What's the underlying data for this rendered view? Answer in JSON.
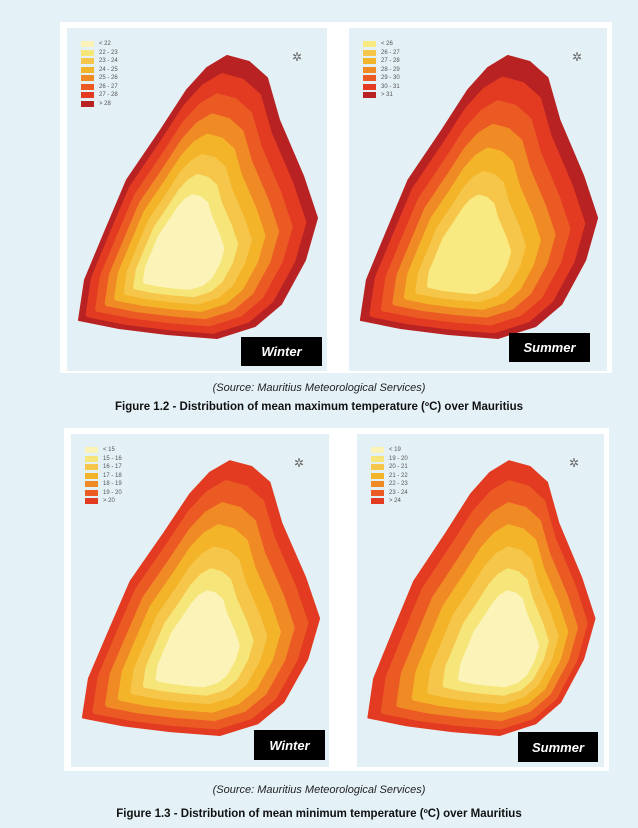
{
  "figures": [
    {
      "source": "(Source: Mauritius Meteorological Services)",
      "caption": "Figure 1.2 -  Distribution of mean maximum temperature (ºC) over Mauritius",
      "maps": [
        {
          "season": "Winter",
          "legend": [
            {
              "label": "< 22",
              "color": "#fbf3b8"
            },
            {
              "label": "22 - 23",
              "color": "#f6e67a"
            },
            {
              "label": "23 - 24",
              "color": "#f6c64a"
            },
            {
              "label": "24 - 25",
              "color": "#f4b42a"
            },
            {
              "label": "25 - 26",
              "color": "#f08a24"
            },
            {
              "label": "26 - 27",
              "color": "#ec5a24"
            },
            {
              "label": "27 - 28",
              "color": "#e33a22"
            },
            {
              "label": "> 28",
              "color": "#b82222"
            }
          ]
        },
        {
          "season": "Summer",
          "legend": [
            {
              "label": "< 26",
              "color": "#f8ea80"
            },
            {
              "label": "26 - 27",
              "color": "#f6c64a"
            },
            {
              "label": "27 - 28",
              "color": "#f4b42a"
            },
            {
              "label": "28 - 29",
              "color": "#f08a24"
            },
            {
              "label": "29 - 30",
              "color": "#ec5a24"
            },
            {
              "label": "30 - 31",
              "color": "#e33a22"
            },
            {
              "label": "> 31",
              "color": "#b82222"
            }
          ]
        }
      ]
    },
    {
      "source": "(Source: Mauritius Meteorological Services)",
      "caption": "Figure 1.3 - Distribution of mean minimum temperature (ºC) over Mauritius",
      "maps": [
        {
          "season": "Winter",
          "legend": [
            {
              "label": "< 15",
              "color": "#fbf3b8"
            },
            {
              "label": "15 - 16",
              "color": "#f6e67a"
            },
            {
              "label": "16 - 17",
              "color": "#f6c64a"
            },
            {
              "label": "17 - 18",
              "color": "#f4b42a"
            },
            {
              "label": "18 - 19",
              "color": "#f08a24"
            },
            {
              "label": "19 - 20",
              "color": "#ec5a24"
            },
            {
              "label": "> 20",
              "color": "#e33a22"
            }
          ]
        },
        {
          "season": "Summer",
          "legend": [
            {
              "label": "< 19",
              "color": "#fbf3b8"
            },
            {
              "label": "19 - 20",
              "color": "#f6e67a"
            },
            {
              "label": "20 - 21",
              "color": "#f6c64a"
            },
            {
              "label": "21 - 22",
              "color": "#f4b42a"
            },
            {
              "label": "22 - 23",
              "color": "#f08a24"
            },
            {
              "label": "23 - 24",
              "color": "#ec5a24"
            },
            {
              "label": "> 24",
              "color": "#e33a22"
            }
          ]
        }
      ]
    }
  ]
}
